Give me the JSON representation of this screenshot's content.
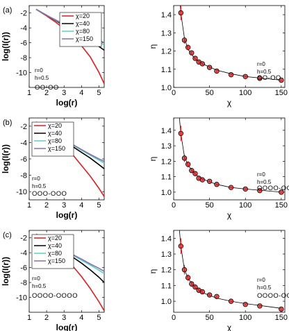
{
  "chart_data": [
    {
      "panel_label": "(a)",
      "type": "line",
      "xlabel": "log(r)",
      "ylabel": "log(I(r))",
      "xlim": [
        1,
        5.3
      ],
      "ylim": [
        -12,
        -1
      ],
      "xticks": [
        "1",
        "2",
        "3",
        "4",
        "5"
      ],
      "yticks": [
        "-2",
        "-4",
        "-6",
        "-8",
        "-10"
      ],
      "legend": "top-right",
      "series": [
        {
          "name": "χ=20",
          "color": "#e8191b",
          "x": [
            1.4,
            2.0,
            2.5,
            3.0,
            3.5,
            4.0,
            4.5,
            5.0,
            5.3
          ],
          "y": [
            -1.5,
            -2.4,
            -3.2,
            -4.1,
            -5.1,
            -6.4,
            -7.9,
            -10.0,
            -11.5
          ]
        },
        {
          "name": "χ=40",
          "color": "#000000",
          "x": [
            1.4,
            2.0,
            2.5,
            3.0,
            3.5,
            4.0,
            4.5,
            5.0,
            5.3
          ],
          "y": [
            -1.5,
            -2.3,
            -3.0,
            -3.7,
            -4.4,
            -5.1,
            -5.7,
            -6.5,
            -7.0
          ]
        },
        {
          "name": "χ=80",
          "color": "#4dd9c2",
          "x": [
            1.4,
            2.0,
            2.5,
            3.0,
            3.5,
            4.0,
            4.5,
            5.0,
            5.3
          ],
          "y": [
            -1.5,
            -2.3,
            -2.95,
            -3.55,
            -4.15,
            -4.75,
            -5.3,
            -5.9,
            -6.3
          ]
        },
        {
          "name": "χ=150",
          "color": "#8a6fb0",
          "x": [
            1.4,
            2.0,
            2.5,
            3.0,
            3.5,
            4.0,
            4.5,
            5.0,
            5.3
          ],
          "y": [
            -1.5,
            -2.3,
            -2.9,
            -3.5,
            -4.05,
            -4.6,
            -5.15,
            -5.65,
            -6.0
          ]
        }
      ],
      "annotations": [
        "r=0",
        "h=0.5",
        "OO-OO"
      ]
    },
    {
      "panel_label": "",
      "type": "scatter",
      "xlabel": "χ",
      "ylabel": "η",
      "xlim": [
        0,
        155
      ],
      "ylim": [
        1.0,
        1.45
      ],
      "xticks": [
        "0",
        "50",
        "100",
        "150"
      ],
      "yticks": [
        "1.0",
        "1.1",
        "1.2",
        "1.3",
        "1.4"
      ],
      "series": [
        {
          "name": "",
          "x": [
            10,
            15,
            20,
            25,
            30,
            35,
            40,
            50,
            60,
            80,
            100,
            120,
            150
          ],
          "y": [
            1.41,
            1.26,
            1.22,
            1.19,
            1.16,
            1.14,
            1.13,
            1.11,
            1.09,
            1.07,
            1.06,
            1.05,
            1.04
          ],
          "err": [
            0.04,
            0.02,
            0.015,
            0.012,
            0.01,
            0.01,
            0.01,
            0.008,
            0.008,
            0.006,
            0.006,
            0.005,
            0.005
          ]
        }
      ],
      "fit": {
        "x": [
          8,
          10,
          15,
          20,
          30,
          40,
          60,
          80,
          100,
          125,
          150
        ],
        "y": [
          1.5,
          1.41,
          1.27,
          1.21,
          1.155,
          1.13,
          1.095,
          1.075,
          1.06,
          1.05,
          1.04
        ]
      },
      "annotations": [
        "r=0",
        "h=0.5",
        "OO-OO"
      ]
    },
    {
      "panel_label": "(b)",
      "type": "line",
      "xlabel": "log(r)",
      "ylabel": "log(I(r))",
      "xlim": [
        1,
        5.3
      ],
      "ylim": [
        -11,
        -1
      ],
      "xticks": [
        "1",
        "2",
        "3",
        "4",
        "5"
      ],
      "yticks": [
        "-2",
        "-4",
        "-6",
        "-8",
        "-10"
      ],
      "legend": "top-left",
      "series": [
        {
          "name": "χ=20",
          "color": "#e8191b",
          "x": [
            1.4,
            2.0,
            2.5,
            3.0,
            3.5,
            4.0,
            4.5,
            5.0,
            5.3
          ],
          "y": [
            -1.5,
            -2.5,
            -3.4,
            -4.4,
            -5.5,
            -6.8,
            -8.1,
            -9.6,
            -10.6
          ]
        },
        {
          "name": "χ=40",
          "color": "#000000",
          "x": [
            1.4,
            2.0,
            2.5,
            3.0,
            3.5,
            4.0,
            4.5,
            5.0,
            5.3
          ],
          "y": [
            -1.5,
            -2.4,
            -3.1,
            -3.8,
            -4.5,
            -5.2,
            -5.9,
            -6.7,
            -7.2
          ]
        },
        {
          "name": "χ=80",
          "color": "#4dd9c2",
          "x": [
            1.4,
            2.0,
            2.5,
            3.0,
            3.5,
            4.0,
            4.5,
            5.0,
            5.3
          ],
          "y": [
            -1.5,
            -2.4,
            -3.05,
            -3.7,
            -4.3,
            -4.95,
            -5.55,
            -6.15,
            -6.5
          ]
        },
        {
          "name": "χ=150",
          "color": "#8a6fb0",
          "x": [
            1.4,
            2.0,
            2.5,
            3.0,
            3.5,
            4.0,
            4.5,
            5.0,
            5.3
          ],
          "y": [
            -1.5,
            -2.4,
            -3.0,
            -3.65,
            -4.25,
            -4.85,
            -5.45,
            -6.0,
            -6.3
          ]
        }
      ],
      "annotations": [
        "r=0",
        "h=0.5",
        "OOO-OOO"
      ]
    },
    {
      "panel_label": "",
      "type": "scatter",
      "xlabel": "χ",
      "ylabel": "η",
      "xlim": [
        0,
        155
      ],
      "ylim": [
        0.95,
        1.48
      ],
      "xticks": [
        "0",
        "50",
        "100",
        "150"
      ],
      "yticks": [
        "1.0",
        "1.1",
        "1.2",
        "1.3",
        "1.4"
      ],
      "series": [
        {
          "name": "",
          "x": [
            10,
            15,
            20,
            25,
            30,
            35,
            40,
            50,
            60,
            80,
            100,
            120,
            150
          ],
          "y": [
            1.38,
            1.22,
            1.18,
            1.14,
            1.12,
            1.09,
            1.08,
            1.07,
            1.05,
            1.03,
            1.02,
            1.01,
            1.0
          ],
          "err": [
            0.05,
            0.025,
            0.02,
            0.015,
            0.012,
            0.01,
            0.01,
            0.008,
            0.008,
            0.006,
            0.006,
            0.005,
            0.005
          ]
        }
      ],
      "fit": {
        "x": [
          8,
          10,
          15,
          20,
          30,
          40,
          60,
          80,
          100,
          125,
          150
        ],
        "y": [
          1.48,
          1.38,
          1.23,
          1.175,
          1.115,
          1.085,
          1.05,
          1.03,
          1.02,
          1.01,
          1.0
        ]
      },
      "annotations": [
        "r=0",
        "h=0.5",
        "OOOO-OOOO"
      ]
    },
    {
      "panel_label": "(c)",
      "type": "line",
      "xlabel": "log(r)",
      "ylabel": "log(I(r))",
      "xlim": [
        1,
        5.3
      ],
      "ylim": [
        -12,
        -1
      ],
      "xticks": [
        "1",
        "2",
        "3",
        "4",
        "5"
      ],
      "yticks": [
        "-2",
        "-4",
        "-6",
        "-8",
        "-10"
      ],
      "legend": "top-left",
      "series": [
        {
          "name": "χ=20",
          "color": "#e8191b",
          "x": [
            1.4,
            2.0,
            2.5,
            3.0,
            3.5,
            4.0,
            4.5,
            5.0,
            5.3
          ],
          "y": [
            -1.5,
            -2.5,
            -3.5,
            -4.6,
            -5.8,
            -7.2,
            -8.8,
            -10.6,
            -11.8
          ]
        },
        {
          "name": "χ=40",
          "color": "#000000",
          "x": [
            1.4,
            2.0,
            2.5,
            3.0,
            3.5,
            4.0,
            4.5,
            5.0,
            5.3
          ],
          "y": [
            -1.5,
            -2.4,
            -3.1,
            -3.8,
            -4.6,
            -5.4,
            -6.3,
            -7.3,
            -8.0
          ]
        },
        {
          "name": "χ=80",
          "color": "#4dd9c2",
          "x": [
            1.4,
            2.0,
            2.5,
            3.0,
            3.5,
            4.0,
            4.5,
            5.0,
            5.3
          ],
          "y": [
            -1.5,
            -2.4,
            -3.05,
            -3.7,
            -4.35,
            -5.0,
            -5.65,
            -6.35,
            -6.8
          ]
        },
        {
          "name": "χ=150",
          "color": "#8a6fb0",
          "x": [
            1.4,
            2.0,
            2.5,
            3.0,
            3.5,
            4.0,
            4.5,
            5.0,
            5.3
          ],
          "y": [
            -1.5,
            -2.4,
            -3.0,
            -3.65,
            -4.25,
            -4.85,
            -5.5,
            -6.1,
            -6.5
          ]
        }
      ],
      "annotations": [
        "r=0",
        "h=0.5",
        "OOOO-OOOO"
      ]
    },
    {
      "panel_label": "",
      "type": "scatter",
      "xlabel": "χ",
      "ylabel": "η",
      "xlim": [
        0,
        155
      ],
      "ylim": [
        0.93,
        1.45
      ],
      "xticks": [
        "0",
        "50",
        "100",
        "150"
      ],
      "yticks": [
        "1.0",
        "1.1",
        "1.2",
        "1.3",
        "1.4"
      ],
      "series": [
        {
          "name": "",
          "x": [
            10,
            15,
            20,
            25,
            30,
            35,
            40,
            50,
            60,
            80,
            100,
            120,
            150
          ],
          "y": [
            1.35,
            1.2,
            1.15,
            1.11,
            1.09,
            1.07,
            1.06,
            1.04,
            1.03,
            1.0,
            0.98,
            0.97,
            0.95
          ],
          "err": [
            0.05,
            0.03,
            0.02,
            0.018,
            0.015,
            0.012,
            0.01,
            0.01,
            0.008,
            0.007,
            0.006,
            0.006,
            0.005
          ]
        }
      ],
      "fit": {
        "x": [
          8,
          10,
          15,
          20,
          30,
          40,
          60,
          80,
          100,
          125,
          150
        ],
        "y": [
          1.45,
          1.35,
          1.2,
          1.145,
          1.085,
          1.055,
          1.02,
          1.0,
          0.985,
          0.97,
          0.955
        ]
      },
      "annotations": [
        "r=0",
        "h=0.5",
        "OOOO-OOOO"
      ]
    }
  ]
}
